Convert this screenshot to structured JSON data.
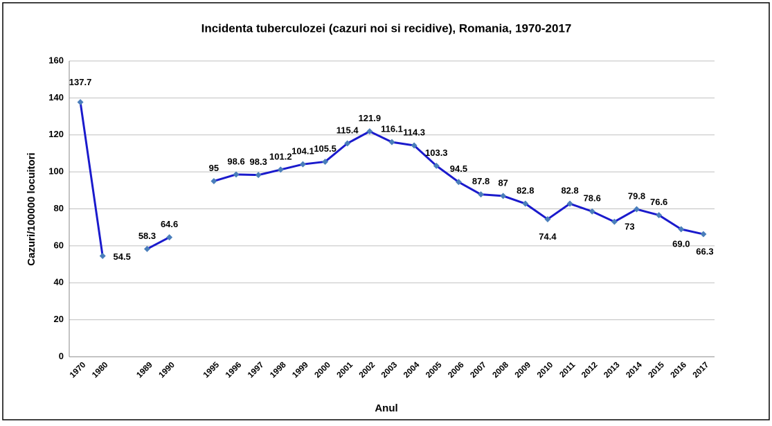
{
  "chart_data": {
    "type": "line",
    "title": "Incidenta tuberculozei (cazuri noi si recidive), Romania, 1970-2017",
    "x_label": "Anul",
    "y_label": "Cazuri/100000 locuitori",
    "categories": [
      "1970",
      "1980",
      null,
      "1989",
      "1990",
      null,
      "1995",
      "1996",
      "1997",
      "1998",
      "1999",
      "2000",
      "2001",
      "2002",
      "2003",
      "2004",
      "2005",
      "2006",
      "2007",
      "2008",
      "2009",
      "2010",
      "2011",
      "2012",
      "2013",
      "2014",
      "2015",
      "2016",
      "2017"
    ],
    "series": [
      {
        "color": "#1a1acc",
        "marker_color": "#4a7ebb",
        "values": [
          137.7,
          54.5,
          null,
          58.3,
          64.6,
          null,
          95,
          98.6,
          98.3,
          101.2,
          104.1,
          105.5,
          115.4,
          121.9,
          116.1,
          114.3,
          103.3,
          94.5,
          87.8,
          87,
          82.8,
          74.4,
          82.8,
          78.6,
          73,
          79.8,
          76.6,
          69,
          66.3
        ],
        "value_labels": [
          "137.7",
          "54.5",
          null,
          "58.3",
          "64.6",
          null,
          "95",
          "98.6",
          "98.3",
          "101.2",
          "104.1",
          "105.5",
          "115.4",
          "121.9",
          "116.1",
          "114.3",
          "103.3",
          "94.5",
          "87.8",
          "87",
          "82.8",
          "74.4",
          "82.8",
          "78.6",
          "73",
          "79.8",
          "76.6",
          "69.0",
          "66.3"
        ]
      }
    ],
    "ylim": [
      0,
      160
    ],
    "yticks": [
      0,
      20,
      40,
      60,
      80,
      100,
      120,
      140,
      160
    ],
    "grid": true
  }
}
